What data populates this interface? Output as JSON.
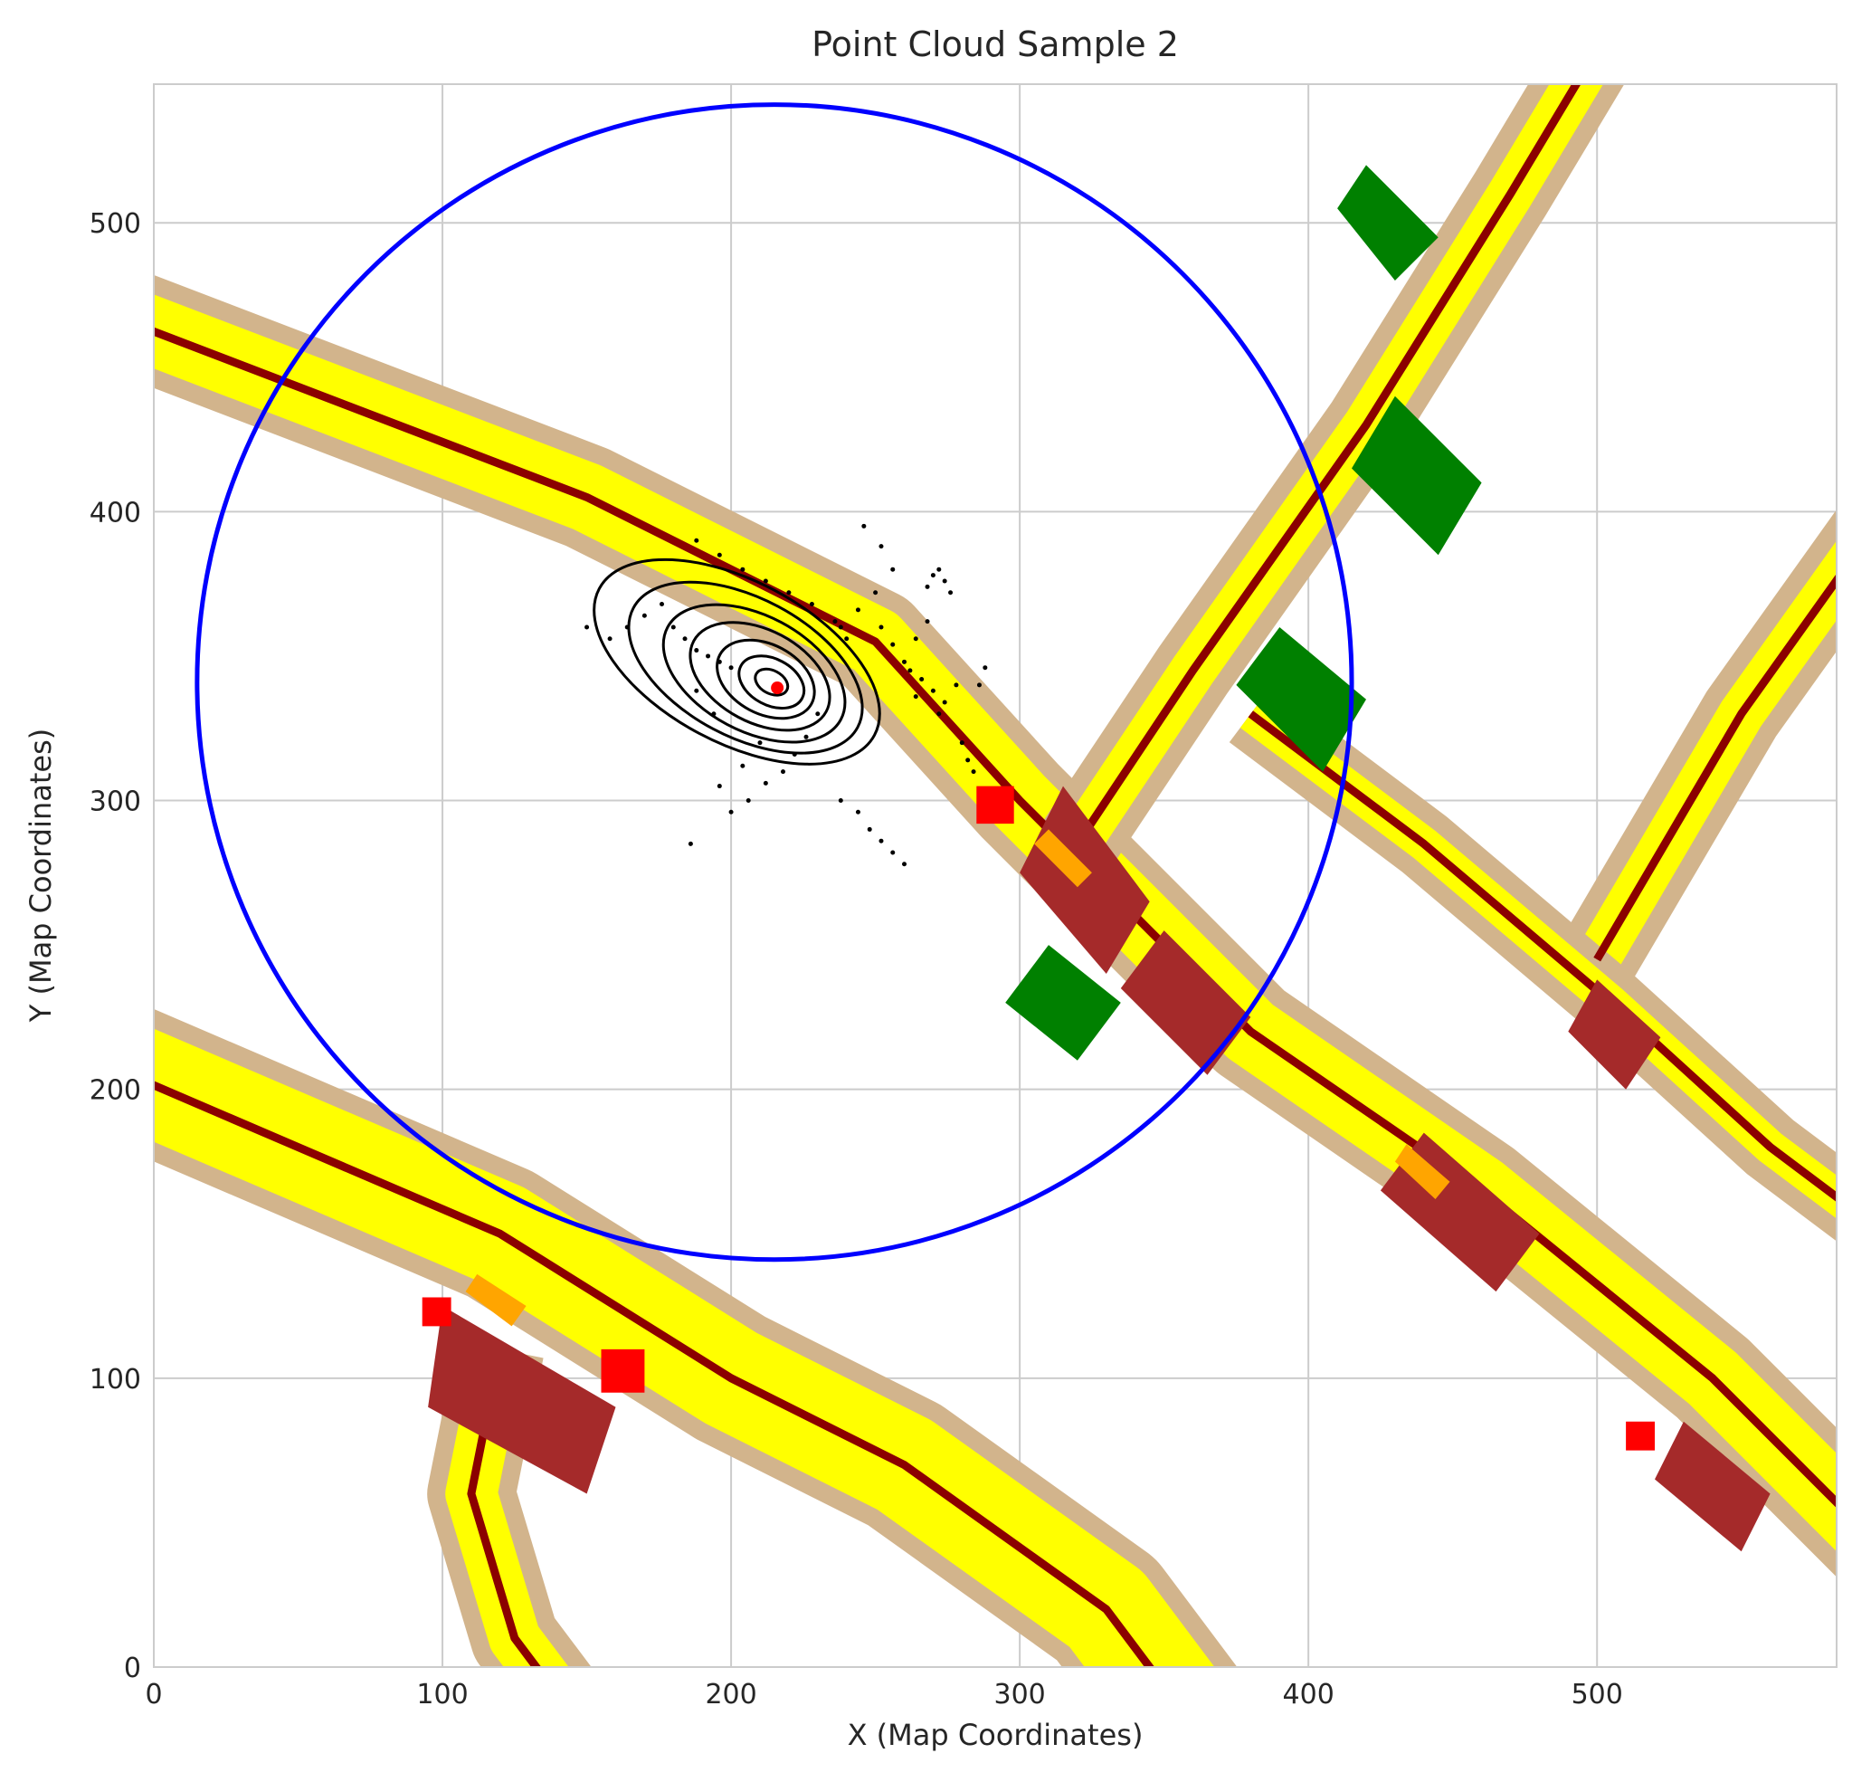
{
  "chart_data": {
    "type": "scatter",
    "title": "Point Cloud Sample 2",
    "xlabel": "X (Map Coordinates)",
    "ylabel": "Y (Map Coordinates)",
    "xlim": [
      0,
      583
    ],
    "ylim": [
      0,
      548
    ],
    "xticks": [
      0,
      100,
      200,
      300,
      400,
      500
    ],
    "yticks": [
      0,
      100,
      200,
      300,
      400,
      500
    ],
    "grid": true,
    "colors": {
      "road": "#ffff00",
      "border": "#d2b48c",
      "lane_line": "#8b0000",
      "intersection": "#a52a2a",
      "vegetation": "#008000",
      "crosswalk": "#ffa500",
      "obstacle": "#ff0000",
      "points": "#000000",
      "range_circle": "#0000ff"
    },
    "range_circle": {
      "center": [
        215,
        341
      ],
      "radius": 200
    },
    "ego_position": [
      216,
      339
    ],
    "map_layers": {
      "roads": [
        {
          "name": "nw-main-road",
          "path": [
            [
              -20,
              470
            ],
            [
              150,
              405
            ],
            [
              250,
              355
            ],
            [
              300,
              300
            ],
            [
              380,
              220
            ],
            [
              460,
              165
            ],
            [
              540,
              100
            ],
            [
              600,
              40
            ]
          ],
          "width": 24
        },
        {
          "name": "sw-curved-road",
          "path": [
            [
              -20,
              210
            ],
            [
              120,
              150
            ],
            [
              200,
              100
            ],
            [
              260,
              70
            ],
            [
              330,
              20
            ],
            [
              360,
              -20
            ]
          ],
          "width": 36
        },
        {
          "name": "sw-curve-branch",
          "path": [
            [
              120,
              110
            ],
            [
              110,
              60
            ],
            [
              125,
              10
            ],
            [
              140,
              -10
            ]
          ],
          "width": 18
        },
        {
          "name": "ne-diagonal-road",
          "path": [
            [
              320,
              285
            ],
            [
              360,
              345
            ],
            [
              420,
              430
            ],
            [
              470,
              510
            ],
            [
              500,
              560
            ]
          ],
          "width": 16
        },
        {
          "name": "e-diagonal-road",
          "path": [
            [
              500,
              245
            ],
            [
              550,
              330
            ],
            [
              600,
              400
            ]
          ],
          "width": 16
        },
        {
          "name": "mid-branch-road",
          "path": [
            [
              380,
              330
            ],
            [
              440,
              285
            ],
            [
              505,
              230
            ],
            [
              560,
              180
            ],
            [
              600,
              150
            ]
          ],
          "width": 12
        }
      ],
      "intersections": [
        [
          [
            315,
            305
          ],
          [
            345,
            265
          ],
          [
            330,
            240
          ],
          [
            300,
            275
          ]
        ],
        [
          [
            350,
            255
          ],
          [
            380,
            225
          ],
          [
            365,
            205
          ],
          [
            335,
            235
          ]
        ],
        [
          [
            100,
            125
          ],
          [
            160,
            90
          ],
          [
            150,
            60
          ],
          [
            95,
            90
          ]
        ],
        [
          [
            440,
            185
          ],
          [
            480,
            150
          ],
          [
            465,
            130
          ],
          [
            425,
            165
          ]
        ],
        [
          [
            530,
            85
          ],
          [
            560,
            60
          ],
          [
            550,
            40
          ],
          [
            520,
            65
          ]
        ],
        [
          [
            500,
            238
          ],
          [
            522,
            218
          ],
          [
            510,
            200
          ],
          [
            490,
            220
          ]
        ]
      ],
      "vegetation": [
        [
          [
            430,
            440
          ],
          [
            460,
            410
          ],
          [
            445,
            385
          ],
          [
            415,
            415
          ]
        ],
        [
          [
            390,
            360
          ],
          [
            420,
            335
          ],
          [
            405,
            310
          ],
          [
            375,
            340
          ]
        ],
        [
          [
            310,
            250
          ],
          [
            335,
            230
          ],
          [
            320,
            210
          ],
          [
            295,
            230
          ]
        ],
        [
          [
            420,
            520
          ],
          [
            445,
            495
          ],
          [
            430,
            480
          ],
          [
            410,
            505
          ]
        ]
      ],
      "crosswalks": [
        [
          [
            305,
            285
          ],
          [
            320,
            270
          ],
          [
            325,
            275
          ],
          [
            310,
            290
          ]
        ],
        [
          [
            108,
            130
          ],
          [
            124,
            118
          ],
          [
            129,
            125
          ],
          [
            112,
            136
          ]
        ],
        [
          [
            430,
            175
          ],
          [
            444,
            162
          ],
          [
            449,
            168
          ],
          [
            434,
            181
          ]
        ]
      ],
      "obstacles": [
        [
          [
            285,
            292
          ],
          [
            298,
            292
          ],
          [
            298,
            305
          ],
          [
            285,
            305
          ]
        ],
        [
          [
            93,
            118
          ],
          [
            103,
            118
          ],
          [
            103,
            128
          ],
          [
            93,
            128
          ]
        ],
        [
          [
            155,
            95
          ],
          [
            170,
            95
          ],
          [
            170,
            110
          ],
          [
            155,
            110
          ]
        ],
        [
          [
            510,
            75
          ],
          [
            520,
            75
          ],
          [
            520,
            85
          ],
          [
            510,
            85
          ]
        ]
      ]
    },
    "point_cloud": {
      "scan_rings": [
        {
          "center": [
            214,
            341
          ],
          "rx": 6,
          "ry": 4
        },
        {
          "center": [
            214,
            341
          ],
          "rx": 12,
          "ry": 8
        },
        {
          "center": [
            212,
            342
          ],
          "rx": 18,
          "ry": 12
        },
        {
          "center": [
            210,
            343
          ],
          "rx": 26,
          "ry": 16
        },
        {
          "center": [
            208,
            344
          ],
          "rx": 34,
          "ry": 20
        },
        {
          "center": [
            205,
            346
          ],
          "rx": 44,
          "ry": 24
        },
        {
          "center": [
            202,
            348
          ],
          "rx": 54,
          "ry": 28
        }
      ],
      "points": [
        [
          188,
          390
        ],
        [
          196,
          385
        ],
        [
          204,
          380
        ],
        [
          212,
          376
        ],
        [
          220,
          372
        ],
        [
          228,
          368
        ],
        [
          236,
          362
        ],
        [
          240,
          356
        ],
        [
          180,
          360
        ],
        [
          184,
          356
        ],
        [
          188,
          352
        ],
        [
          192,
          350
        ],
        [
          196,
          348
        ],
        [
          200,
          346
        ],
        [
          246,
          395
        ],
        [
          252,
          388
        ],
        [
          256,
          380
        ],
        [
          250,
          372
        ],
        [
          244,
          366
        ],
        [
          238,
          360
        ],
        [
          272,
          380
        ],
        [
          274,
          376
        ],
        [
          276,
          372
        ],
        [
          270,
          378
        ],
        [
          268,
          374
        ],
        [
          262,
          345
        ],
        [
          266,
          342
        ],
        [
          270,
          338
        ],
        [
          274,
          334
        ],
        [
          278,
          340
        ],
        [
          272,
          330
        ],
        [
          264,
          336
        ],
        [
          230,
          330
        ],
        [
          226,
          322
        ],
        [
          222,
          316
        ],
        [
          218,
          310
        ],
        [
          212,
          306
        ],
        [
          206,
          300
        ],
        [
          200,
          296
        ],
        [
          238,
          300
        ],
        [
          244,
          296
        ],
        [
          248,
          290
        ],
        [
          252,
          286
        ],
        [
          256,
          282
        ],
        [
          260,
          278
        ],
        [
          186,
          285
        ],
        [
          196,
          305
        ],
        [
          204,
          312
        ],
        [
          210,
          320
        ],
        [
          194,
          330
        ],
        [
          188,
          338
        ],
        [
          252,
          360
        ],
        [
          256,
          354
        ],
        [
          260,
          348
        ],
        [
          264,
          356
        ],
        [
          268,
          362
        ],
        [
          280,
          320
        ],
        [
          282,
          314
        ],
        [
          284,
          310
        ],
        [
          286,
          340
        ],
        [
          288,
          346
        ],
        [
          158,
          356
        ],
        [
          164,
          360
        ],
        [
          170,
          364
        ],
        [
          176,
          368
        ],
        [
          150,
          360
        ]
      ]
    }
  }
}
